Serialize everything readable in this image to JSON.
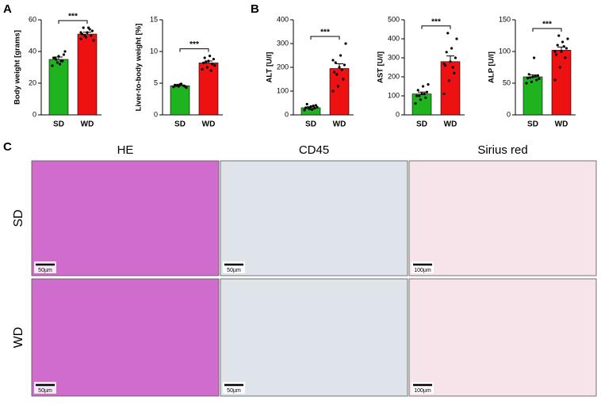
{
  "panel_labels": [
    "A",
    "B",
    "C"
  ],
  "chart_data": [
    {
      "type": "bar",
      "ylabel": "Body weight [grams]",
      "categories": [
        "SD",
        "WD"
      ],
      "values": [
        35,
        51
      ],
      "errors": [
        1.5,
        1.2
      ],
      "colors": [
        "#1fb41f",
        "#ee1111"
      ],
      "points": [
        [
          31,
          33,
          34,
          36,
          37,
          38,
          36,
          32,
          40,
          35,
          34
        ],
        [
          48,
          49,
          50,
          51,
          52,
          53,
          55,
          55,
          47,
          50,
          54,
          52
        ]
      ],
      "significance": "***",
      "ylim": [
        0,
        60
      ],
      "yticks": [
        0,
        20,
        40,
        60
      ]
    },
    {
      "type": "bar",
      "ylabel": "Liver-to-body weight [%]",
      "categories": [
        "SD",
        "WD"
      ],
      "values": [
        4.6,
        8.2
      ],
      "errors": [
        0.1,
        0.3
      ],
      "colors": [
        "#1fb41f",
        "#ee1111"
      ],
      "points": [
        [
          4.4,
          4.5,
          4.6,
          4.7,
          4.8,
          4.5,
          4.6,
          4.9,
          4.3,
          4.7
        ],
        [
          7.2,
          7.5,
          8.0,
          8.2,
          8.5,
          8.8,
          9.0,
          9.3,
          7.8,
          8.3,
          7.0
        ]
      ],
      "significance": "***",
      "ylim": [
        0,
        15
      ],
      "yticks": [
        0,
        5,
        10,
        15
      ]
    },
    {
      "type": "bar",
      "ylabel": "ALT [U/l]",
      "categories": [
        "SD",
        "WD"
      ],
      "values": [
        30,
        195
      ],
      "errors": [
        4,
        20
      ],
      "colors": [
        "#1fb41f",
        "#ee1111"
      ],
      "points": [
        [
          20,
          25,
          28,
          30,
          35,
          40,
          45,
          22,
          32,
          30,
          38
        ],
        [
          100,
          120,
          150,
          180,
          200,
          210,
          220,
          250,
          300,
          170,
          190,
          230
        ]
      ],
      "significance": "***",
      "ylim": [
        0,
        400
      ],
      "yticks": [
        0,
        100,
        200,
        300,
        400
      ]
    },
    {
      "type": "bar",
      "ylabel": "AST [U/l]",
      "categories": [
        "SD",
        "WD"
      ],
      "values": [
        110,
        280
      ],
      "errors": [
        10,
        30
      ],
      "colors": [
        "#1fb41f",
        "#ee1111"
      ],
      "points": [
        [
          60,
          80,
          90,
          100,
          110,
          120,
          130,
          150,
          160,
          100,
          110
        ],
        [
          110,
          180,
          220,
          260,
          280,
          300,
          330,
          350,
          400,
          430,
          250,
          270
        ]
      ],
      "significance": "***",
      "ylim": [
        0,
        500
      ],
      "yticks": [
        0,
        100,
        200,
        300,
        400,
        500
      ]
    },
    {
      "type": "bar",
      "ylabel": "ALP [U/l]",
      "categories": [
        "SD",
        "WD"
      ],
      "values": [
        60,
        102
      ],
      "errors": [
        3,
        5
      ],
      "colors": [
        "#1fb41f",
        "#ee1111"
      ],
      "points": [
        [
          50,
          52,
          55,
          58,
          60,
          62,
          64,
          90,
          57,
          59,
          61
        ],
        [
          55,
          75,
          90,
          95,
          100,
          105,
          110,
          115,
          120,
          125,
          108,
          100
        ]
      ],
      "significance": "***",
      "ylim": [
        0,
        150
      ],
      "yticks": [
        0,
        50,
        100,
        150
      ]
    }
  ],
  "histology": {
    "columns": [
      "HE",
      "CD45",
      "Sirius red"
    ],
    "rows": [
      "SD",
      "WD"
    ],
    "scale_bars": [
      [
        "50µm",
        "50µm",
        "100µm"
      ],
      [
        "50µm",
        "50µm",
        "100µm"
      ]
    ]
  }
}
